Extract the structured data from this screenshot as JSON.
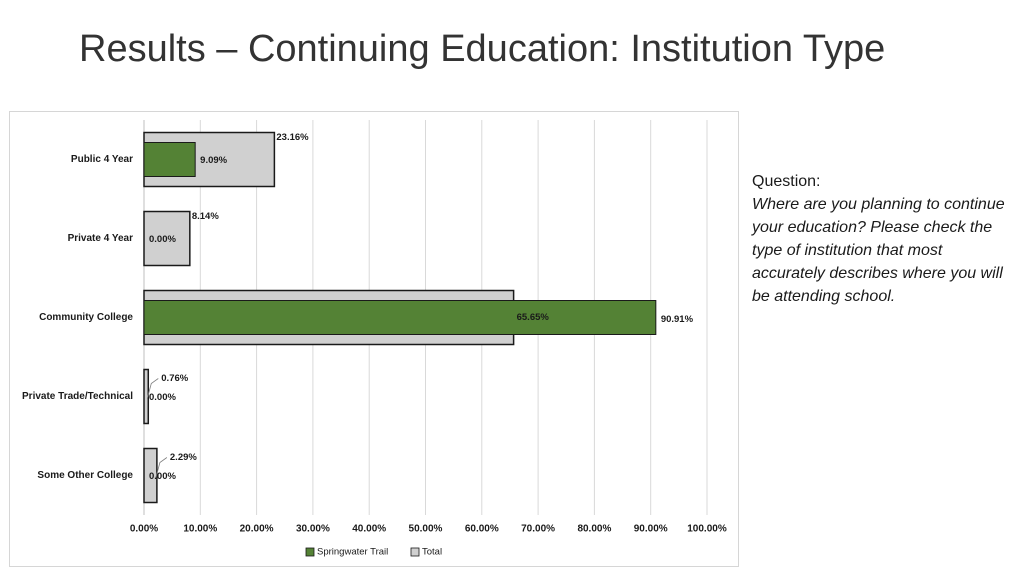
{
  "slide": {
    "title": "Results – Continuing Education: Institution Type"
  },
  "question": {
    "label": "Question:",
    "text": "Where are you planning to continue your education?  Please check the type of institution that most accurately describes where you will be attending school."
  },
  "chart_data": {
    "type": "bar",
    "orientation": "horizontal",
    "categories": [
      "Public 4 Year",
      "Private 4 Year",
      "Community College",
      "Private Trade/Technical",
      "Some Other College"
    ],
    "series": [
      {
        "name": "Springwater Trail",
        "values": [
          9.09,
          0.0,
          90.91,
          0.0,
          0.0
        ],
        "labels": [
          "9.09%",
          "0.00%",
          "90.91%",
          "0.00%",
          "0.00%"
        ],
        "color": "#548235"
      },
      {
        "name": "Total",
        "values": [
          23.16,
          8.14,
          65.65,
          0.76,
          2.29
        ],
        "labels": [
          "23.16%",
          "8.14%",
          "65.65%",
          "0.76%",
          "2.29%"
        ],
        "color": "#d0d0d0"
      }
    ],
    "xlim": [
      0,
      100
    ],
    "xticks": [
      "0.00%",
      "10.00%",
      "20.00%",
      "30.00%",
      "40.00%",
      "50.00%",
      "60.00%",
      "70.00%",
      "80.00%",
      "90.00%",
      "100.00%"
    ],
    "grid": true,
    "legend_position": "bottom"
  }
}
